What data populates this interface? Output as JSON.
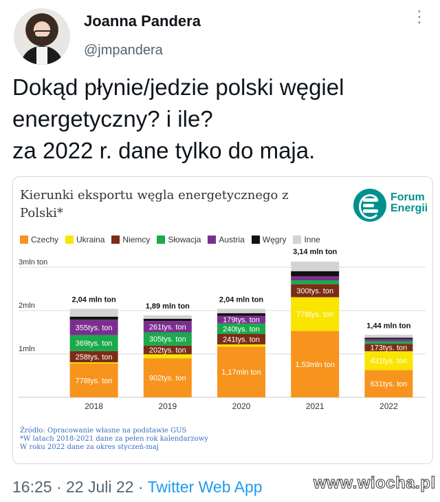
{
  "tweet": {
    "author_name": "Joanna Pandera",
    "author_handle": "@jmpandera",
    "more_icon": "⋮",
    "text": "Dokąd płynie/jedzie polski węgiel\nenergetyczny? i ile?\nza 2022 r. dane tylko do maja.",
    "footer_time": "16:25 · 22 Juli 22 · ",
    "footer_app": "Twitter Web App",
    "watermark": "www.wiocha.pl"
  },
  "card": {
    "title": "Kierunki eksportu węgla energetycznego z Polski*",
    "logo_line1": "Forum",
    "logo_line2": "Energii",
    "source_line1": "Źródło: Opracowanie własne na podstawie GUS",
    "source_line2": "*W latach 2018-2021 dane za pełen rok kalendarzowy",
    "source_line3": "W roku 2022 dane za okres styczeń-maj"
  },
  "chart_data": {
    "type": "bar",
    "stacked": true,
    "categories": [
      "2018",
      "2019",
      "2020",
      "2021",
      "2022"
    ],
    "y_ticks": [
      "3mln ton",
      "2mln",
      "1mln"
    ],
    "y_tick_values": [
      3.0,
      2.0,
      1.0
    ],
    "ylim": [
      0,
      3.25
    ],
    "totals": [
      "2,04 mln ton",
      "1,89 mln ton",
      "2,04 mln ton",
      "3,14 mln ton",
      "1,44 mln ton"
    ],
    "total_values": [
      2.04,
      1.89,
      2.04,
      3.14,
      1.44
    ],
    "series": [
      {
        "name": "Czechy",
        "color": "#f7941d",
        "values": [
          0.778,
          0.902,
          1.17,
          1.53,
          0.631
        ],
        "labels": [
          "778tys. ton",
          "902tys. ton",
          "1,17mln ton",
          "1,53mln ton",
          "631tys. ton"
        ]
      },
      {
        "name": "Ukraina",
        "color": "#f9e500",
        "values": [
          0.03,
          0.09,
          0.05,
          0.778,
          0.431
        ],
        "labels": [
          "",
          "",
          "",
          "778tys. ton",
          "431tys. ton"
        ]
      },
      {
        "name": "Niemcy",
        "color": "#7b2d17",
        "values": [
          0.258,
          0.202,
          0.241,
          0.3,
          0.173
        ],
        "labels": [
          "258tys. ton",
          "202tys. ton",
          "241tys. ton",
          "300tys. ton",
          "173tys. ton"
        ]
      },
      {
        "name": "Słowacja",
        "color": "#1aaa4b",
        "values": [
          0.369,
          0.305,
          0.24,
          0.09,
          0.06
        ],
        "labels": [
          "369tys. ton",
          "305tys. ton",
          "240tys. ton",
          "",
          ""
        ]
      },
      {
        "name": "Austria",
        "color": "#7b2e90",
        "values": [
          0.355,
          0.261,
          0.179,
          0.09,
          0.05
        ],
        "labels": [
          "355tys. ton",
          "261tys. ton",
          "179tys. ton",
          "",
          ""
        ]
      },
      {
        "name": "Węgry",
        "color": "#111111",
        "values": [
          0.07,
          0.05,
          0.06,
          0.12,
          0.03
        ],
        "labels": [
          "",
          "",
          "",
          "",
          ""
        ]
      },
      {
        "name": "Inne",
        "color": "#d3d3d3",
        "values": [
          0.18,
          0.08,
          0.1,
          0.22,
          0.066
        ],
        "labels": [
          "",
          "",
          "",
          "",
          ""
        ]
      }
    ],
    "legend_position": "top-left",
    "grid": true
  }
}
